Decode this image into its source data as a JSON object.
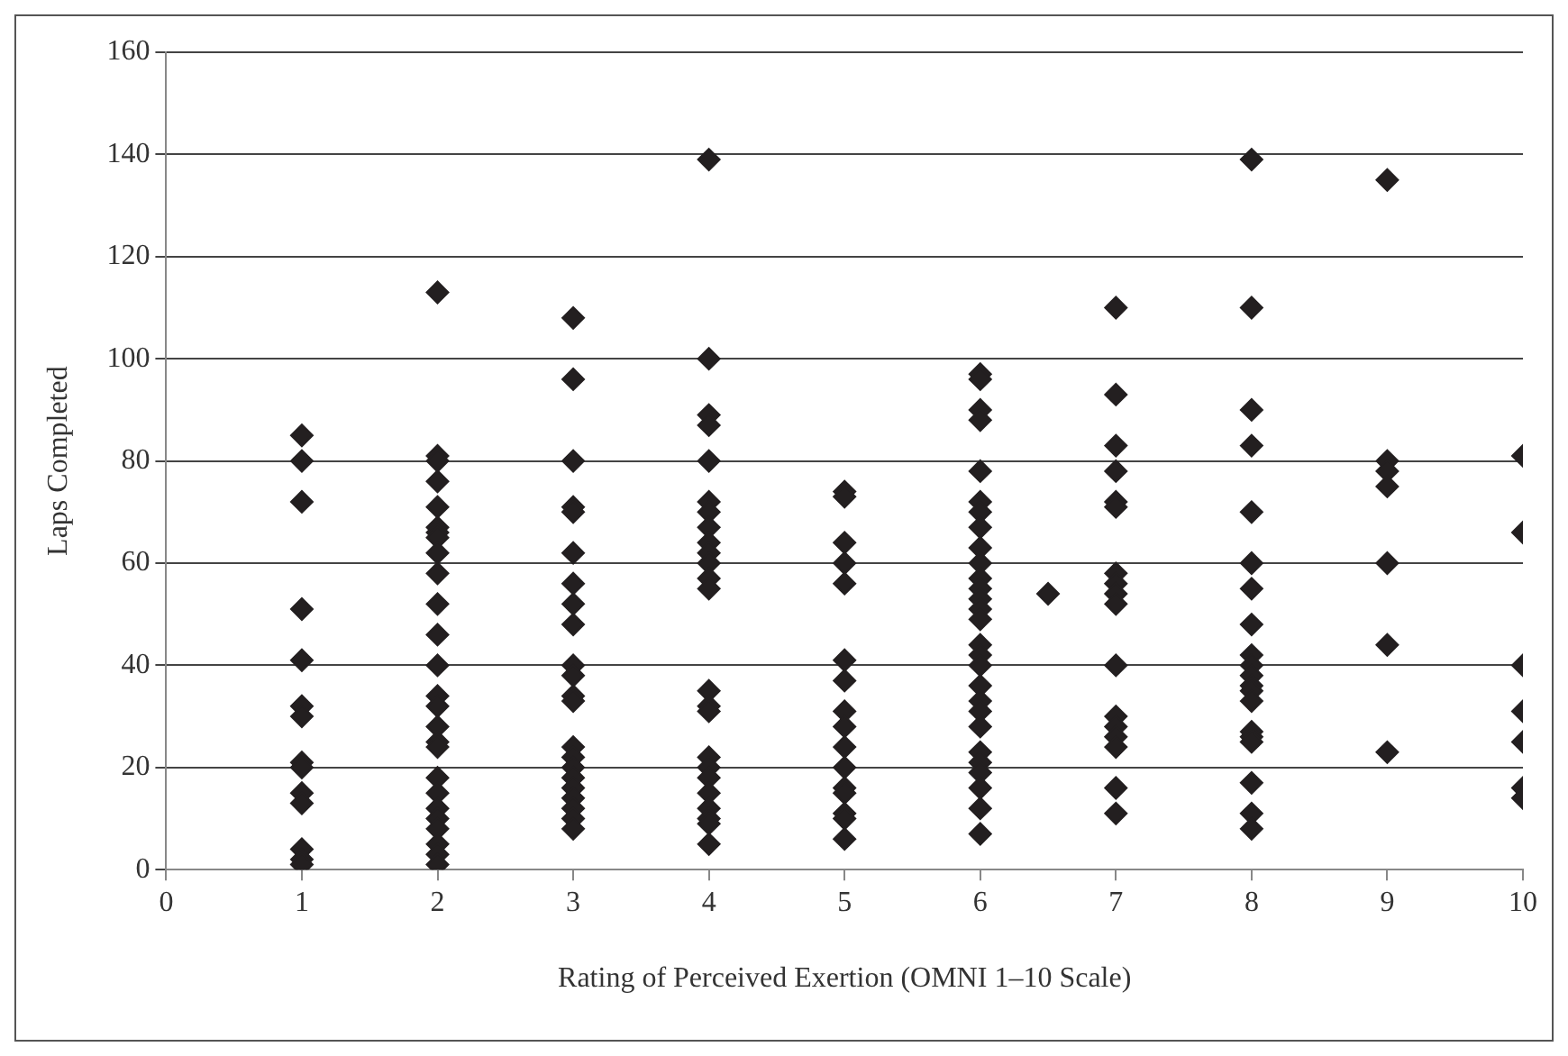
{
  "chart_data": {
    "type": "scatter",
    "xlabel": "Rating of Perceived Exertion (OMNI 1–10 Scale)",
    "ylabel": "Laps Completed",
    "xlim": [
      0,
      10
    ],
    "xticks": [
      0,
      1,
      2,
      3,
      4,
      5,
      6,
      7,
      8,
      9,
      10
    ],
    "ylim": [
      0,
      160
    ],
    "yticks": [
      0,
      20,
      40,
      60,
      80,
      100,
      120,
      140,
      160
    ],
    "grid": "y",
    "marker": "diamond",
    "series": [
      {
        "color": "#231f20",
        "x": [
          1,
          1,
          1,
          1,
          1,
          1,
          1,
          1,
          1,
          1,
          1,
          1,
          1,
          1,
          2,
          2,
          2,
          2,
          2,
          2,
          2,
          2,
          2,
          2,
          2,
          2,
          2,
          2,
          2,
          2,
          2,
          2,
          2,
          2,
          2,
          2,
          2,
          2,
          2,
          2,
          3,
          3,
          3,
          3,
          3,
          3,
          3,
          3,
          3,
          3,
          3,
          3,
          3,
          3,
          3,
          3,
          3,
          3,
          3,
          3,
          3,
          3,
          4,
          4,
          4,
          4,
          4,
          4,
          4,
          4,
          4,
          4,
          4,
          4,
          4,
          4,
          4,
          4,
          4,
          4,
          4,
          4,
          4,
          4,
          4,
          4,
          5,
          5,
          5,
          5,
          5,
          5,
          5,
          5,
          5,
          5,
          5,
          5,
          5,
          5,
          5,
          5,
          6,
          6,
          6,
          6,
          6,
          6,
          6,
          6,
          6,
          6,
          6,
          6,
          6,
          6,
          6,
          6,
          6,
          6,
          6,
          6,
          6,
          6,
          6,
          6,
          6,
          6,
          6,
          6,
          6.5,
          7,
          7,
          7,
          7,
          7,
          7,
          7,
          7,
          7,
          7,
          7,
          7,
          7,
          7,
          7,
          7,
          7,
          8,
          8,
          8,
          8,
          8,
          8,
          8,
          8,
          8,
          8,
          8,
          8,
          8,
          8,
          8,
          8,
          8,
          8,
          8,
          8,
          9,
          9,
          9,
          9,
          9,
          9,
          9,
          10,
          10,
          10,
          10,
          10,
          10,
          10
        ],
        "values": [
          85,
          80,
          72,
          51,
          41,
          32,
          30,
          21,
          20,
          15,
          13,
          4,
          2,
          1,
          113,
          81,
          80,
          76,
          71,
          67,
          66,
          65,
          62,
          58,
          52,
          46,
          40,
          34,
          32,
          28,
          25,
          24,
          18,
          15,
          12,
          10,
          8,
          5,
          3,
          1,
          108,
          96,
          80,
          71,
          70,
          62,
          56,
          52,
          48,
          40,
          38,
          34,
          33,
          24,
          22,
          20,
          18,
          16,
          14,
          12,
          10,
          8,
          139,
          100,
          89,
          87,
          80,
          72,
          70,
          67,
          64,
          62,
          60,
          57,
          55,
          35,
          32,
          31,
          22,
          20,
          18,
          15,
          12,
          10,
          9,
          5,
          74,
          73,
          64,
          60,
          56,
          41,
          37,
          31,
          28,
          24,
          20,
          16,
          15,
          11,
          10,
          6,
          97,
          96,
          90,
          88,
          78,
          72,
          70,
          67,
          63,
          60,
          57,
          55,
          53,
          51,
          49,
          44,
          42,
          40,
          36,
          33,
          31,
          28,
          23,
          21,
          19,
          16,
          12,
          7,
          54,
          110,
          93,
          83,
          78,
          72,
          71,
          58,
          56,
          54,
          52,
          40,
          30,
          28,
          26,
          24,
          16,
          11,
          139,
          110,
          90,
          83,
          70,
          60,
          55,
          48,
          42,
          40,
          38,
          36,
          35,
          33,
          27,
          26,
          25,
          17,
          11,
          8,
          135,
          80,
          78,
          75,
          60,
          44,
          23,
          81,
          66,
          40,
          31,
          25,
          16,
          14
        ]
      }
    ]
  }
}
